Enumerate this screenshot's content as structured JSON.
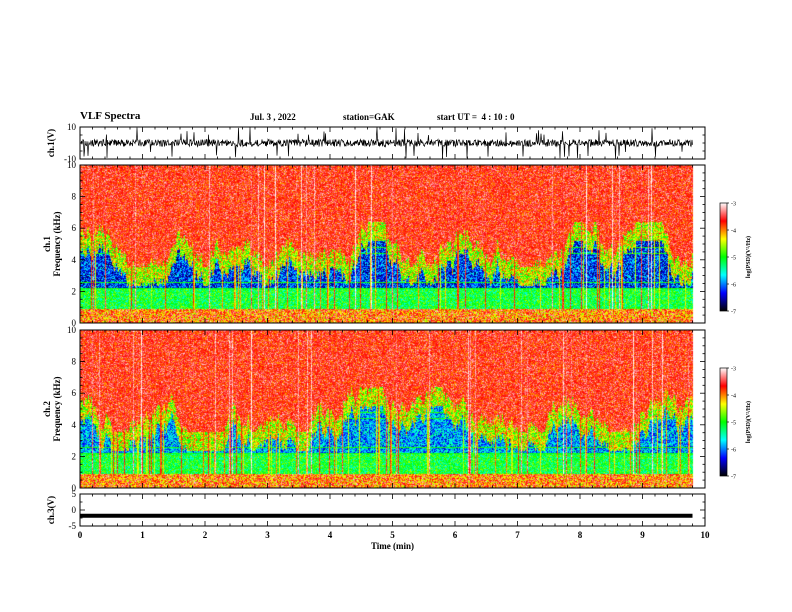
{
  "header": {
    "title": "VLF Spectra",
    "date": "Jul. 3 , 2022",
    "station": "station=GAK",
    "start": "start UT =  4 : 10 : 0"
  },
  "chart_data": {
    "type": "heatmap",
    "x": {
      "label": "Time (min)",
      "range": [
        0,
        10
      ],
      "ticks": [
        "0",
        "1",
        "2",
        "3",
        "4",
        "5",
        "6",
        "7",
        "8",
        "9",
        "10"
      ]
    },
    "panels": [
      {
        "name": "ch.1",
        "type": "line",
        "ylabel": "ch.1(V)",
        "ylim": [
          -10,
          10
        ],
        "ticks": [
          "10",
          "-10"
        ],
        "signal": "noisy waveform around 0 V with frequent spikes"
      },
      {
        "name": "ch.1",
        "type": "heatmap",
        "ylabel": "ch.1\nFrequency (kHz)",
        "ylim": [
          0,
          10
        ],
        "ticks": [
          "0",
          "2",
          "4",
          "6",
          "8",
          "10"
        ],
        "data_end_min": 9.8
      },
      {
        "name": "ch.2",
        "type": "heatmap",
        "ylabel": "ch.2\nFrequency (kHz)",
        "ylim": [
          0,
          10
        ],
        "ticks": [
          "0",
          "2",
          "4",
          "6",
          "8",
          "10"
        ],
        "data_end_min": 9.8
      },
      {
        "name": "ch.3",
        "type": "line",
        "ylabel": "ch.3(V)",
        "ylim": [
          -5,
          5
        ],
        "ticks": [
          "5",
          "0",
          "-5"
        ],
        "value": -1.8
      }
    ],
    "colorbar": {
      "label": "log(PSD)(V²/Hz)",
      "range": [
        -7,
        -3
      ],
      "ticks": [
        "-3",
        "-4",
        "-5",
        "-6",
        "-7"
      ],
      "colormap": [
        "#000000",
        "#0000ff",
        "#00ffff",
        "#00ff00",
        "#ffff00",
        "#ff0000",
        "#ffffff"
      ]
    }
  }
}
